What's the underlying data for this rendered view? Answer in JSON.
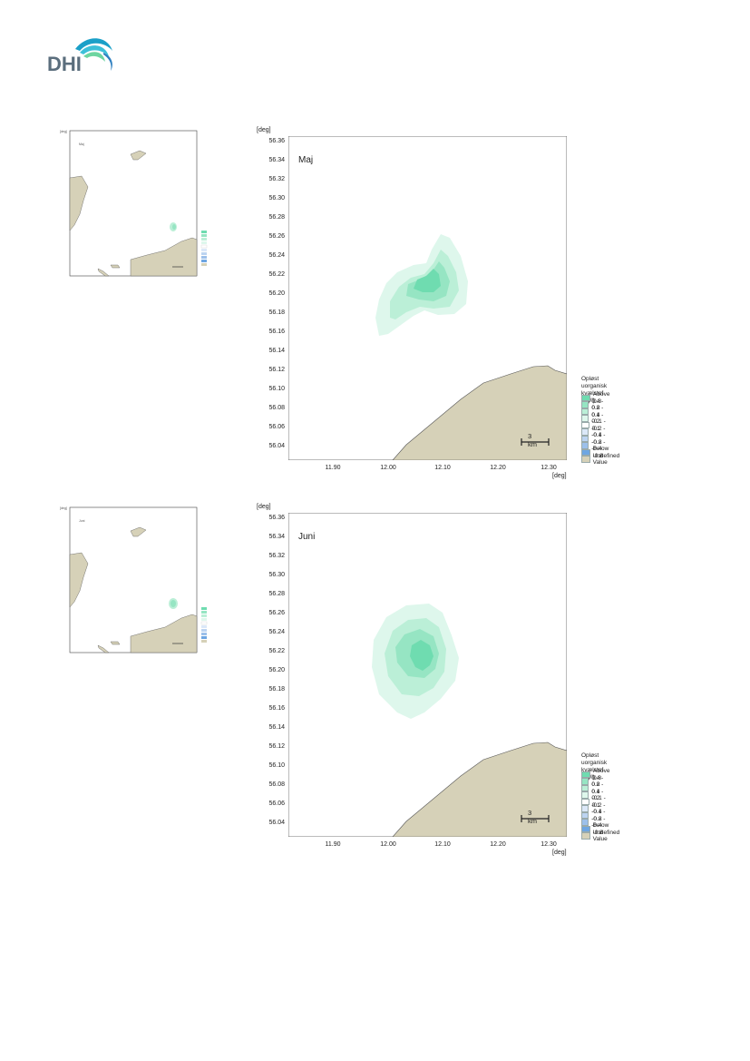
{
  "logo": {
    "text": "DHI"
  },
  "colors": {
    "land": "#d6d1b8",
    "water": "#ffffff",
    "above_0_8": "#6fdcb0",
    "c_04_08": "#96e5c3",
    "c_02_04": "#bbefd7",
    "c_01_02": "#def7ec",
    "c_neg01_01": "#ffffff",
    "c_neg02_neg01": "#dbe8f8",
    "c_neg04_neg02": "#bcd4f1",
    "c_neg08_neg04": "#9cc0ea",
    "below_neg08": "#6ea6e2",
    "undefined": "#d6d1b8"
  },
  "units": {
    "y": "[deg]",
    "x": "[deg]"
  },
  "y_ticks": [
    "56.36",
    "56.34",
    "56.32",
    "56.30",
    "56.28",
    "56.26",
    "56.24",
    "56.22",
    "56.20",
    "56.18",
    "56.16",
    "56.14",
    "56.12",
    "56.10",
    "56.08",
    "56.06",
    "56.04"
  ],
  "x_ticks": [
    "11.90",
    "12.00",
    "12.10",
    "12.20",
    "12.30"
  ],
  "legend": {
    "title_line1": "Opløst uorganisk kvælstof",
    "title_line2": "(µg/l)",
    "items": [
      "Above  0.8",
      "0.4 -  0.8",
      "0.2 -  0.4",
      "0.1 -  0.2",
      "-0.1 -  0.1",
      "-0.2 - -0.1",
      "-0.4 - -0.2",
      "-0.8 - -0.4",
      "Below -0.8",
      "Undefined Value"
    ]
  },
  "scale_bar": {
    "label": "3 km"
  },
  "maps": [
    {
      "month": "Maj"
    },
    {
      "month": "Juni"
    }
  ]
}
